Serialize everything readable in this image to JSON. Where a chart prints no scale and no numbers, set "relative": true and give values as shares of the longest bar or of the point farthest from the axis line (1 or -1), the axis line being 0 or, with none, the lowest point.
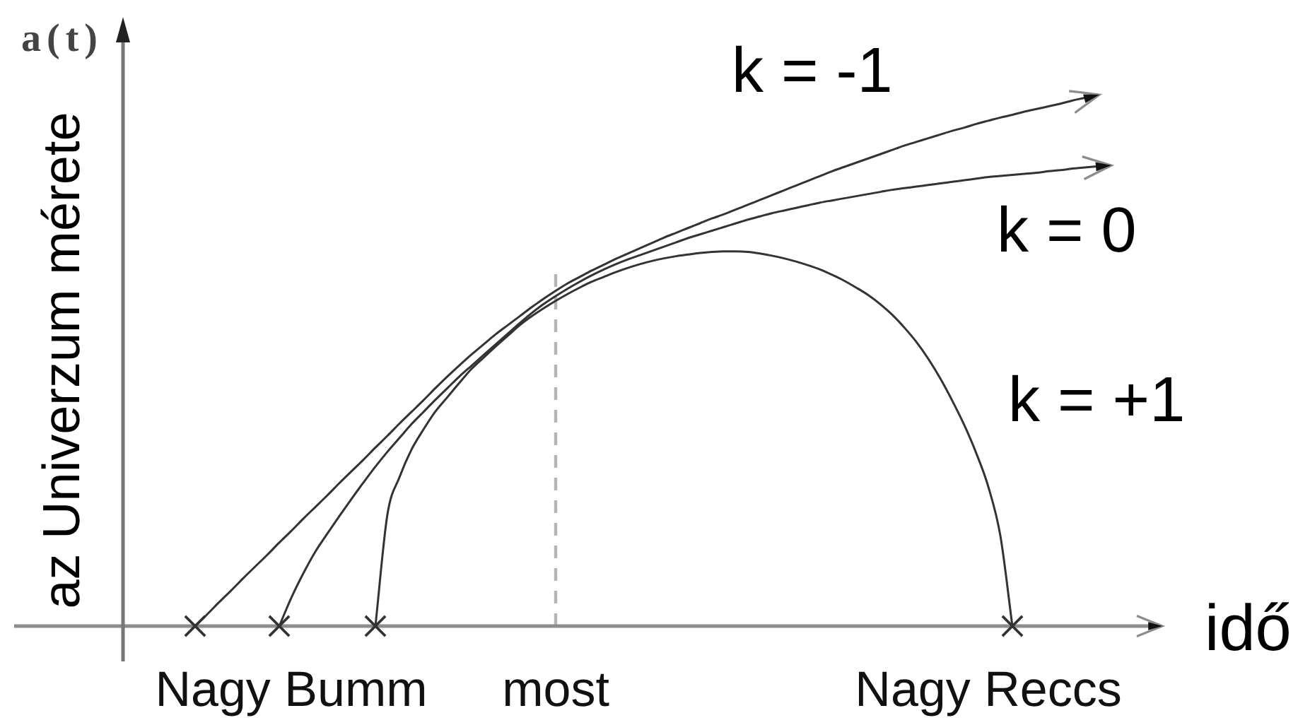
{
  "chart_data": {
    "type": "line",
    "relative": true,
    "marker": "none",
    "tick_labels": "x",
    "xlabel": "idő",
    "ylabel": "az Univerzum mérete",
    "annotations": [
      "a(t)"
    ],
    "categories": [
      null,
      null,
      null,
      null,
      null,
      null,
      null,
      null,
      null,
      null,
      null,
      null,
      null,
      null,
      "Nagy Bumm",
      null,
      null,
      null,
      null,
      null,
      null,
      null,
      null,
      null,
      null,
      null,
      null,
      null,
      null,
      null,
      null,
      null,
      null,
      null,
      null,
      null,
      "most",
      null,
      null,
      null,
      null,
      null,
      null,
      null,
      null,
      null,
      null,
      null,
      null,
      null,
      null,
      null,
      null,
      null,
      null,
      null,
      null,
      null,
      null,
      null,
      null,
      null,
      null,
      null,
      null,
      null,
      null,
      null,
      null,
      null,
      null,
      null,
      "Nagy Reccs",
      null,
      null,
      null,
      null,
      null,
      null,
      null,
      null,
      null,
      null,
      null,
      null,
      null,
      null
    ],
    "series": [
      {
        "name": "k = -1",
        "color": "#333333",
        "values": [
          null,
          null,
          null,
          null,
          null,
          null,
          0,
          0.022,
          0.045,
          0.067,
          0.09,
          0.112,
          0.134,
          0.157,
          0.179,
          0.202,
          0.224,
          0.246,
          0.269,
          0.291,
          0.313,
          0.336,
          0.358,
          0.381,
          0.403,
          0.425,
          0.448,
          0.47,
          0.491,
          0.511,
          0.53,
          0.549,
          0.566,
          0.583,
          0.6,
          0.616,
          0.631,
          0.645,
          0.657,
          0.669,
          0.68,
          0.691,
          0.701,
          0.711,
          0.721,
          0.731,
          0.74,
          0.749,
          0.758,
          0.767,
          0.775,
          0.784,
          0.793,
          0.802,
          0.811,
          0.82,
          0.829,
          0.838,
          0.847,
          0.856,
          0.864,
          0.872,
          0.88,
          0.888,
          0.896,
          0.904,
          0.911,
          0.918,
          0.925,
          0.932,
          0.938,
          0.945,
          0.951,
          0.957,
          0.962,
          0.968,
          0.973,
          0.978,
          0.983,
          0.989,
          0.994,
          1,
          null,
          null,
          null,
          null,
          null
        ]
      },
      {
        "name": "k = 0",
        "color": "#333333",
        "values": [
          null,
          null,
          null,
          null,
          null,
          null,
          null,
          null,
          null,
          null,
          null,
          null,
          null,
          0,
          0.053,
          0.099,
          0.14,
          0.174,
          0.207,
          0.239,
          0.27,
          0.3,
          0.328,
          0.354,
          0.38,
          0.403,
          0.426,
          0.448,
          0.47,
          0.49,
          0.51,
          0.53,
          0.55,
          0.57,
          0.589,
          0.606,
          0.621,
          0.635,
          0.648,
          0.66,
          0.671,
          0.681,
          0.69,
          0.698,
          0.706,
          0.714,
          0.722,
          0.73,
          0.737,
          0.744,
          0.751,
          0.758,
          0.765,
          0.771,
          0.777,
          0.782,
          0.787,
          0.792,
          0.797,
          0.801,
          0.805,
          0.809,
          0.813,
          0.817,
          0.821,
          0.824,
          0.827,
          0.83,
          0.833,
          0.836,
          0.839,
          0.842,
          0.845,
          0.847,
          0.849,
          0.851,
          0.853,
          0.856,
          0.858,
          0.861,
          0.863,
          0.865,
          0.867,
          null,
          null,
          null,
          null
        ]
      },
      {
        "name": "k = +1",
        "color": "#333333",
        "values": [
          null,
          null,
          null,
          null,
          null,
          null,
          null,
          null,
          null,
          null,
          null,
          null,
          null,
          null,
          null,
          null,
          null,
          null,
          null,
          null,
          null,
          0,
          0.21,
          0.28,
          0.332,
          0.37,
          0.404,
          0.431,
          0.458,
          0.484,
          0.505,
          0.526,
          0.546,
          0.566,
          0.583,
          0.598,
          0.612,
          0.625,
          0.637,
          0.648,
          0.657,
          0.666,
          0.674,
          0.681,
          0.687,
          0.692,
          0.696,
          0.699,
          0.702,
          0.704,
          0.705,
          0.705,
          0.704,
          0.701,
          0.697,
          0.692,
          0.686,
          0.679,
          0.671,
          0.661,
          0.65,
          0.637,
          0.623,
          0.606,
          0.586,
          0.562,
          0.535,
          0.503,
          0.466,
          0.424,
          0.378,
          0.325,
          0.262,
          0.17,
          0,
          null,
          null,
          null,
          null,
          null,
          null,
          null,
          null,
          null,
          null,
          null,
          null
        ]
      },
      {
        "type": "scatter",
        "marker": "cross",
        "color": "#333333",
        "values": [
          null,
          null,
          null,
          null,
          null,
          null,
          0,
          null,
          null,
          null,
          null,
          null,
          null,
          0,
          null,
          null,
          null,
          null,
          null,
          null,
          null,
          0,
          null,
          null,
          null,
          null,
          null,
          null,
          null,
          null,
          null,
          null,
          null,
          null,
          null,
          null,
          null,
          null,
          null,
          null,
          null,
          null,
          null,
          null,
          null,
          null,
          null,
          null,
          null,
          null,
          null,
          null,
          null,
          null,
          null,
          null,
          null,
          null,
          null,
          null,
          null,
          null,
          null,
          null,
          null,
          null,
          null,
          null,
          null,
          null,
          null,
          null,
          null,
          null,
          0,
          null,
          null,
          null,
          null,
          null,
          null,
          null,
          null,
          null,
          null,
          null,
          null
        ]
      }
    ],
    "ref_lines": [
      {
        "axis": "x",
        "value": "most",
        "color": "#b4b4b4",
        "line_style": "dashed"
      }
    ]
  }
}
